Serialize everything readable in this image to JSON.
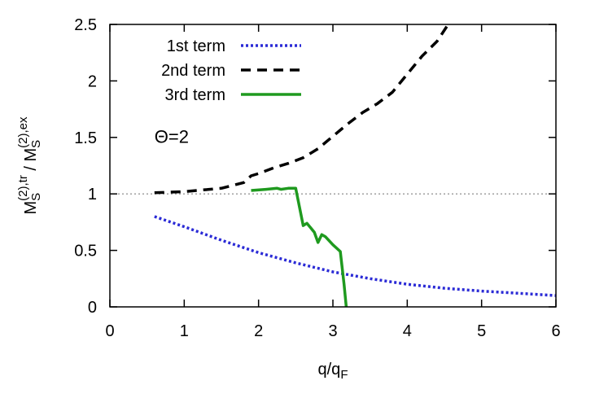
{
  "chart_data": {
    "type": "line",
    "xlabel": {
      "main": "q/q",
      "sub": "F"
    },
    "ylabel": {
      "num_main": "M",
      "num_sub": "S",
      "num_sup": "(2),tr",
      "sep": " / ",
      "den_main": "M",
      "den_sub": "S",
      "den_sup": "(2),ex"
    },
    "xlim": [
      0,
      6
    ],
    "ylim": [
      0,
      2.5
    ],
    "xticks": [
      0,
      1,
      2,
      3,
      4,
      5,
      6
    ],
    "xtick_labels": [
      "0",
      "1",
      "2",
      "3",
      "4",
      "5",
      "6"
    ],
    "yticks": [
      0,
      0.5,
      1,
      1.5,
      2,
      2.5
    ],
    "ytick_labels": [
      "0",
      "0.5",
      "1",
      "1.5",
      "2",
      "2.5"
    ],
    "reference_line": {
      "y": 1,
      "style": "dotted",
      "color": "#808080"
    },
    "annotation": {
      "text": "Θ=2",
      "x": 0.6,
      "y": 1.45
    },
    "legend": {
      "position": "top-left"
    },
    "series": [
      {
        "name": "1st term",
        "color": "#2b2bd6",
        "style": "dotted",
        "x": [
          0.6,
          1.0,
          1.5,
          2.0,
          2.5,
          3.0,
          3.5,
          4.0,
          4.5,
          5.0,
          5.5,
          6.0
        ],
        "y": [
          0.8,
          0.71,
          0.59,
          0.48,
          0.39,
          0.31,
          0.25,
          0.2,
          0.165,
          0.14,
          0.12,
          0.1
        ]
      },
      {
        "name": "2nd term",
        "color": "#000000",
        "style": "dashed",
        "x": [
          0.6,
          1.0,
          1.5,
          1.8,
          1.9,
          2.0,
          2.2,
          2.4,
          2.6,
          2.8,
          3.0,
          3.2,
          3.4,
          3.6,
          3.8,
          4.0,
          4.2,
          4.4,
          4.55
        ],
        "y": [
          1.01,
          1.02,
          1.05,
          1.1,
          1.16,
          1.18,
          1.23,
          1.27,
          1.32,
          1.4,
          1.51,
          1.62,
          1.72,
          1.8,
          1.9,
          2.06,
          2.22,
          2.35,
          2.5
        ]
      },
      {
        "name": "3rd term",
        "color": "#1f9a1f",
        "style": "solid",
        "x": [
          1.9,
          2.1,
          2.25,
          2.3,
          2.4,
          2.5,
          2.6,
          2.65,
          2.7,
          2.75,
          2.8,
          2.85,
          2.9,
          3.0,
          3.1,
          3.15,
          3.18
        ],
        "y": [
          1.03,
          1.04,
          1.05,
          1.04,
          1.05,
          1.05,
          0.72,
          0.74,
          0.7,
          0.66,
          0.57,
          0.64,
          0.62,
          0.55,
          0.49,
          0.2,
          0.0
        ]
      }
    ]
  }
}
